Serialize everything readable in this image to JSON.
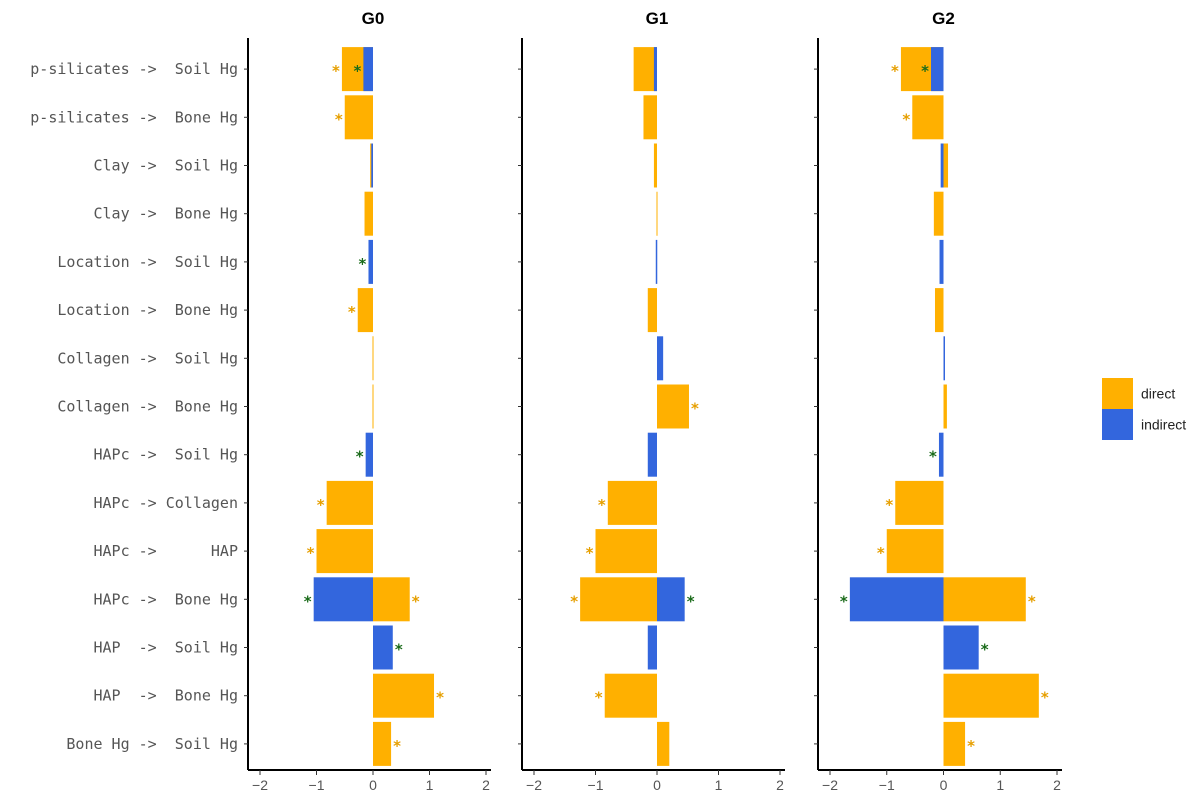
{
  "chart_data": {
    "type": "bar",
    "orientation": "horizontal",
    "stacking": "overlaid",
    "categories": [
      "p-silicates ->  Soil Hg",
      "p-silicates ->  Bone Hg",
      "Clay ->  Soil Hg",
      "Clay ->  Bone Hg",
      "Location ->  Soil Hg",
      "Location ->  Bone Hg",
      "Collagen ->  Soil Hg",
      "Collagen ->  Bone Hg",
      "HAPc ->  Soil Hg",
      "HAPc -> Collagen",
      "HAPc ->      HAP",
      "HAPc ->  Bone Hg",
      "HAP  ->  Soil Hg",
      "HAP  ->  Bone Hg",
      "Bone Hg ->  Soil Hg"
    ],
    "xlim": [
      -2.2,
      2.2
    ],
    "xticks": [
      -2,
      -1,
      0,
      1,
      2
    ],
    "tick_labels": [
      "−2",
      "−1",
      "0",
      "1",
      "2"
    ],
    "significance_marker": "*",
    "legend": {
      "position": "right",
      "entries": [
        {
          "label": "direct",
          "color": "#FFB000"
        },
        {
          "label": "indirect",
          "color": "#3366DD"
        }
      ]
    },
    "colors": {
      "direct": "#FFB000",
      "indirect": "#3366DD",
      "direct_star": "#E69F00",
      "indirect_star": "#1A6B1A"
    },
    "panels": [
      {
        "title": "G0",
        "direct": [
          -0.55,
          -0.5,
          -0.05,
          -0.15,
          0.0,
          -0.27,
          0.0,
          0.0,
          0.0,
          -0.82,
          -1.0,
          0.65,
          0.0,
          1.08,
          0.32
        ],
        "indirect": [
          -0.17,
          0.0,
          -0.03,
          0.0,
          -0.08,
          0.0,
          0.0,
          0.0,
          -0.13,
          0.0,
          0.0,
          -1.05,
          0.35,
          0.0,
          0.0
        ],
        "direct_sig": [
          true,
          true,
          false,
          false,
          false,
          true,
          false,
          false,
          false,
          true,
          true,
          true,
          false,
          true,
          true
        ],
        "indirect_sig": [
          true,
          false,
          false,
          false,
          true,
          false,
          false,
          false,
          true,
          false,
          false,
          true,
          true,
          false,
          false
        ]
      },
      {
        "title": "G1",
        "direct": [
          -0.38,
          -0.22,
          -0.05,
          0.0,
          0.0,
          -0.15,
          0.0,
          0.52,
          0.0,
          -0.8,
          -1.0,
          -1.25,
          0.0,
          -0.85,
          0.2
        ],
        "indirect": [
          -0.05,
          0.0,
          0.0,
          0.0,
          -0.02,
          0.0,
          0.1,
          0.0,
          -0.15,
          0.0,
          0.0,
          0.45,
          -0.15,
          0.0,
          0.0
        ],
        "direct_sig": [
          false,
          false,
          false,
          false,
          false,
          false,
          false,
          true,
          false,
          true,
          true,
          true,
          false,
          true,
          false
        ],
        "indirect_sig": [
          false,
          false,
          false,
          false,
          false,
          false,
          false,
          false,
          false,
          false,
          false,
          true,
          false,
          false,
          false
        ]
      },
      {
        "title": "G2",
        "direct": [
          -0.75,
          -0.55,
          0.08,
          -0.17,
          0.0,
          -0.15,
          0.0,
          0.06,
          0.0,
          -0.85,
          -1.0,
          1.45,
          0.0,
          1.68,
          0.38
        ],
        "indirect": [
          -0.22,
          0.0,
          -0.05,
          0.0,
          -0.07,
          0.0,
          0.02,
          0.0,
          -0.08,
          0.0,
          0.0,
          -1.65,
          0.62,
          0.0,
          0.0
        ],
        "direct_sig": [
          true,
          true,
          false,
          false,
          false,
          false,
          false,
          false,
          false,
          true,
          true,
          true,
          false,
          true,
          true
        ],
        "indirect_sig": [
          true,
          false,
          false,
          false,
          false,
          false,
          false,
          false,
          true,
          false,
          false,
          true,
          true,
          false,
          false
        ]
      }
    ]
  }
}
